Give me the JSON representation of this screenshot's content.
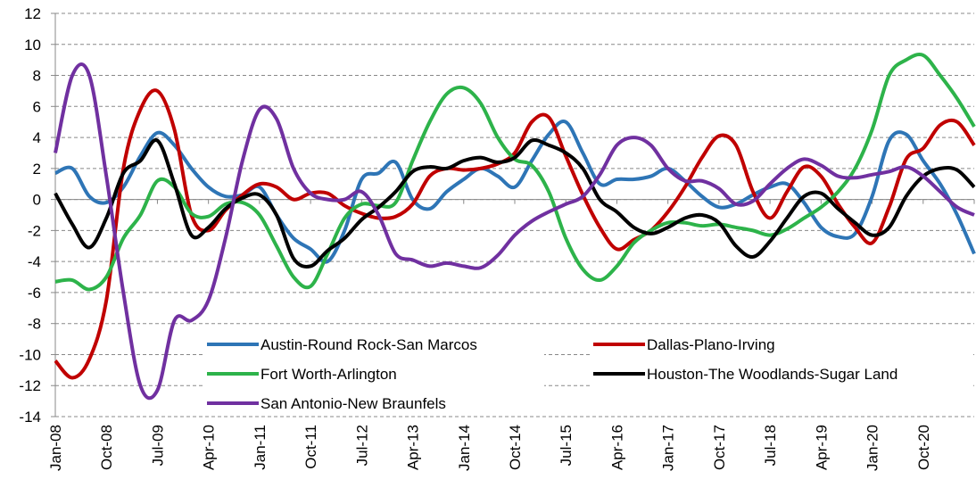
{
  "chart_data": {
    "type": "line",
    "categories": [
      "Jan-08",
      null,
      null,
      "Oct-08",
      null,
      null,
      "Jul-09",
      null,
      null,
      "Apr-10",
      null,
      null,
      "Jan-11",
      null,
      null,
      "Oct-11",
      null,
      null,
      "Jul-12",
      null,
      null,
      "Apr-13",
      null,
      null,
      "Jan-14",
      null,
      null,
      "Oct-14",
      null,
      null,
      "Jul-15",
      null,
      null,
      "Apr-16",
      null,
      null,
      "Jan-17",
      null,
      null,
      "Oct-17",
      null,
      null,
      "Jul-18",
      null,
      null,
      "Apr-19",
      null,
      null,
      "Jan-20",
      null,
      null,
      "Oct-20",
      null,
      null,
      null
    ],
    "series": [
      {
        "name": "Austin-Round Rock-San Marcos",
        "color": "#2e75b6",
        "values": [
          1.7,
          2.0,
          0.2,
          -0.2,
          0.8,
          2.8,
          4.3,
          3.5,
          2.0,
          0.8,
          0.2,
          0.3,
          0.8,
          -1.0,
          -2.5,
          -3.2,
          -4.0,
          -2.0,
          1.3,
          1.7,
          2.4,
          0.0,
          -0.6,
          0.5,
          1.3,
          2.0,
          1.5,
          0.8,
          2.5,
          4.2,
          5.0,
          3.0,
          1.0,
          1.3,
          1.3,
          1.5,
          2.0,
          1.2,
          0.2,
          -0.5,
          -0.3,
          0.3,
          0.8,
          1.0,
          -0.2,
          -1.8,
          -2.4,
          -2.2,
          0.2,
          3.8,
          4.2,
          2.5,
          1.0,
          -1.0,
          -3.5
        ]
      },
      {
        "name": "Dallas-Plano-Irving",
        "color": "#c00000",
        "values": [
          -10.4,
          -11.5,
          -10.3,
          -6.5,
          2.0,
          5.8,
          7.0,
          4.5,
          -1.0,
          -2.0,
          -0.7,
          0.3,
          1.0,
          0.8,
          0.0,
          0.4,
          0.4,
          -0.4,
          -0.9,
          -1.2,
          -1.1,
          -0.3,
          1.5,
          2.0,
          1.9,
          2.0,
          2.3,
          3.0,
          5.0,
          5.3,
          2.8,
          0.3,
          -1.8,
          -3.2,
          -2.6,
          -2.0,
          -0.8,
          0.8,
          2.7,
          4.1,
          3.5,
          0.5,
          -1.2,
          0.5,
          2.1,
          1.5,
          -0.3,
          -1.8,
          -2.8,
          -0.5,
          2.6,
          3.3,
          4.8,
          5.0,
          3.5
        ]
      },
      {
        "name": "Fort Worth-Arlington",
        "color": "#2db34a",
        "values": [
          -5.3,
          -5.2,
          -5.8,
          -5.0,
          -2.5,
          -1.0,
          1.2,
          0.8,
          -0.9,
          -1.1,
          -0.3,
          -0.2,
          -1.0,
          -3.0,
          -5.0,
          -5.6,
          -3.5,
          -1.2,
          -0.3,
          -0.4,
          -0.2,
          2.5,
          5.0,
          6.8,
          7.2,
          6.2,
          4.0,
          2.6,
          2.2,
          0.5,
          -2.5,
          -4.5,
          -5.2,
          -4.3,
          -2.8,
          -2.0,
          -1.5,
          -1.5,
          -1.7,
          -1.6,
          -1.8,
          -2.0,
          -2.3,
          -1.9,
          -1.2,
          -0.5,
          0.5,
          2.0,
          4.5,
          8.0,
          9.0,
          9.3,
          8.0,
          6.5,
          4.7
        ]
      },
      {
        "name": "Houston-The Woodlands-Sugar Land",
        "color": "#000000",
        "values": [
          0.4,
          -1.6,
          -3.1,
          -1.2,
          1.7,
          2.5,
          3.8,
          1.0,
          -2.3,
          -1.8,
          -0.6,
          0.1,
          0.3,
          -1.0,
          -3.8,
          -4.3,
          -3.3,
          -2.5,
          -1.3,
          -0.5,
          0.5,
          1.8,
          2.1,
          2.0,
          2.5,
          2.7,
          2.4,
          2.7,
          3.8,
          3.5,
          3.0,
          2.0,
          0.0,
          -0.8,
          -1.8,
          -2.2,
          -1.8,
          -1.2,
          -1.0,
          -1.5,
          -3.0,
          -3.7,
          -2.7,
          -1.2,
          0.2,
          0.4,
          -0.6,
          -1.5,
          -2.3,
          -1.8,
          0.2,
          1.5,
          2.0,
          1.9,
          0.8
        ]
      },
      {
        "name": "San Antonio-New Braunfels",
        "color": "#7030a0",
        "values": [
          3.0,
          8.0,
          8.0,
          1.5,
          -6.0,
          -12.0,
          -12.3,
          -7.8,
          -7.8,
          -6.5,
          -2.5,
          2.5,
          5.8,
          5.2,
          2.0,
          0.4,
          0.0,
          0.0,
          0.5,
          -1.0,
          -3.5,
          -3.9,
          -4.3,
          -4.1,
          -4.3,
          -4.4,
          -3.6,
          -2.3,
          -1.4,
          -0.8,
          -0.3,
          0.2,
          1.6,
          3.5,
          4.0,
          3.5,
          2.0,
          1.2,
          1.2,
          0.7,
          -0.3,
          -0.1,
          1.0,
          2.0,
          2.6,
          2.2,
          1.5,
          1.4,
          1.6,
          1.8,
          2.1,
          1.5,
          0.5,
          -0.5,
          -1.0
        ]
      }
    ],
    "ylim": [
      -14,
      12
    ],
    "yticks": [
      -14,
      -12,
      -10,
      -8,
      -6,
      -4,
      -2,
      0,
      2,
      4,
      6,
      8,
      10,
      12
    ],
    "grid": true
  }
}
